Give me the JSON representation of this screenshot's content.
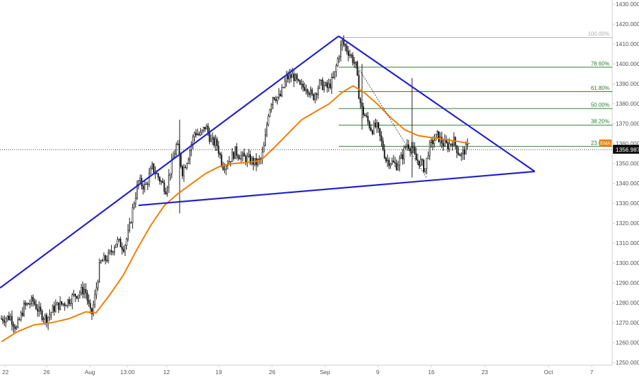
{
  "chart_data": {
    "type": "candlestick",
    "title": "",
    "xlabel": "",
    "ylabel": "",
    "ylim": [
      1250,
      1430
    ],
    "xlim": [
      0,
      932
    ],
    "x_tick_labels": [
      {
        "label": "22",
        "x": 8
      },
      {
        "label": "26",
        "x": 68
      },
      {
        "label": "Aug",
        "x": 131
      },
      {
        "label": "13:00",
        "x": 186
      },
      {
        "label": "12",
        "x": 243
      },
      {
        "label": "19",
        "x": 319
      },
      {
        "label": "26",
        "x": 397
      },
      {
        "label": "Sep",
        "x": 474
      },
      {
        "label": "9",
        "x": 551
      },
      {
        "label": "16",
        "x": 629
      },
      {
        "label": "23",
        "x": 707
      },
      {
        "label": "Oct",
        "x": 800
      },
      {
        "label": "7",
        "x": 863
      }
    ],
    "y_ticks": [
      1250,
      1260,
      1270,
      1280,
      1290,
      1300,
      1310,
      1320,
      1330,
      1340,
      1350,
      1360,
      1370,
      1380,
      1390,
      1400,
      1410,
      1420,
      1430
    ],
    "y_tick_labels": [
      "1250.000",
      "1260.000",
      "1270.000",
      "1280.000",
      "1290.000",
      "1300.000",
      "1310.000",
      "1320.000",
      "1330.000",
      "1340.000",
      "1350.000",
      "1360.000",
      "1370.000",
      "1380.000",
      "1390.000",
      "1400.000",
      "1410.000",
      "1420.000",
      "1430.000"
    ],
    "last_price": {
      "value": 1356.987,
      "label": "1356.987"
    },
    "candle_anchors": [
      [
        2,
        1272
      ],
      [
        15,
        1273
      ],
      [
        24,
        1267
      ],
      [
        35,
        1278
      ],
      [
        48,
        1281
      ],
      [
        58,
        1275
      ],
      [
        68,
        1272
      ],
      [
        80,
        1278
      ],
      [
        95,
        1280
      ],
      [
        110,
        1284
      ],
      [
        124,
        1287
      ],
      [
        133,
        1273
      ],
      [
        138,
        1282
      ],
      [
        146,
        1300
      ],
      [
        158,
        1303
      ],
      [
        170,
        1311
      ],
      [
        181,
        1308
      ],
      [
        188,
        1316
      ],
      [
        195,
        1330
      ],
      [
        202,
        1341
      ],
      [
        212,
        1338
      ],
      [
        222,
        1348
      ],
      [
        233,
        1342
      ],
      [
        242,
        1337
      ],
      [
        250,
        1349
      ],
      [
        258,
        1360
      ],
      [
        266,
        1346
      ],
      [
        274,
        1353
      ],
      [
        284,
        1366
      ],
      [
        292,
        1364
      ],
      [
        300,
        1369
      ],
      [
        308,
        1361
      ],
      [
        316,
        1360
      ],
      [
        325,
        1349
      ],
      [
        333,
        1351
      ],
      [
        343,
        1356
      ],
      [
        354,
        1353
      ],
      [
        364,
        1352
      ],
      [
        373,
        1350
      ],
      [
        381,
        1352
      ],
      [
        386,
        1360
      ],
      [
        391,
        1375
      ],
      [
        398,
        1384
      ],
      [
        408,
        1383
      ],
      [
        418,
        1393
      ],
      [
        428,
        1394
      ],
      [
        438,
        1388
      ],
      [
        447,
        1389
      ],
      [
        456,
        1383
      ],
      [
        466,
        1390
      ],
      [
        478,
        1388
      ],
      [
        487,
        1393
      ],
      [
        493,
        1403
      ],
      [
        499,
        1411
      ],
      [
        505,
        1408
      ],
      [
        512,
        1404
      ],
      [
        519,
        1399
      ],
      [
        524,
        1383
      ],
      [
        528,
        1377
      ],
      [
        535,
        1372
      ],
      [
        542,
        1367
      ],
      [
        549,
        1369
      ],
      [
        556,
        1361
      ],
      [
        563,
        1352
      ],
      [
        570,
        1351
      ],
      [
        578,
        1349
      ],
      [
        586,
        1353
      ],
      [
        593,
        1360
      ],
      [
        601,
        1358
      ],
      [
        606,
        1352
      ],
      [
        613,
        1351
      ],
      [
        620,
        1347
      ],
      [
        625,
        1357
      ],
      [
        631,
        1361
      ],
      [
        638,
        1364
      ],
      [
        646,
        1360
      ],
      [
        654,
        1359
      ],
      [
        661,
        1362
      ],
      [
        668,
        1356
      ],
      [
        673,
        1354
      ],
      [
        678,
        1357
      ],
      [
        683,
        1358
      ]
    ],
    "series": [
      {
        "name": "EMA",
        "type": "line",
        "color": "#f57c00",
        "points": [
          [
            2,
            1260.5
          ],
          [
            25,
            1265.5
          ],
          [
            50,
            1269
          ],
          [
            75,
            1270
          ],
          [
            100,
            1272
          ],
          [
            125,
            1275.5
          ],
          [
            140,
            1275
          ],
          [
            160,
            1284
          ],
          [
            180,
            1294
          ],
          [
            200,
            1307
          ],
          [
            220,
            1319
          ],
          [
            240,
            1329
          ],
          [
            260,
            1335
          ],
          [
            280,
            1340
          ],
          [
            300,
            1345
          ],
          [
            320,
            1348.5
          ],
          [
            340,
            1350
          ],
          [
            360,
            1350.5
          ],
          [
            380,
            1351.5
          ],
          [
            400,
            1358
          ],
          [
            420,
            1365
          ],
          [
            440,
            1372
          ],
          [
            460,
            1376
          ],
          [
            480,
            1380
          ],
          [
            500,
            1386
          ],
          [
            515,
            1389
          ],
          [
            530,
            1386
          ],
          [
            550,
            1380
          ],
          [
            570,
            1373
          ],
          [
            590,
            1367
          ],
          [
            610,
            1364
          ],
          [
            630,
            1363
          ],
          [
            650,
            1362
          ],
          [
            670,
            1361
          ],
          [
            685,
            1360
          ]
        ]
      }
    ],
    "trendlines": [
      {
        "name": "upper-ascending",
        "color": "#2020d0",
        "from": [
          0,
          1287.5
        ],
        "to": [
          494,
          1414
        ]
      },
      {
        "name": "upper-descending",
        "color": "#2020d0",
        "from": [
          494,
          1414
        ],
        "to": [
          780,
          1346
        ]
      },
      {
        "name": "lower-support",
        "color": "#2020d0",
        "from": [
          202,
          1329
        ],
        "to": [
          780,
          1346
        ]
      }
    ],
    "dotted_line": {
      "from": [
        510,
        1405
      ],
      "to": [
        622,
        1343
      ]
    },
    "fibonacci": {
      "x_start": 494,
      "x_end": 893,
      "levels": [
        {
          "label": "100.00%",
          "price": 1413.3,
          "color": "#b0b0b0"
        },
        {
          "label": "78.60%",
          "price": 1398.4,
          "color": "#2e7d32"
        },
        {
          "label": "61.80%",
          "price": 1386.1,
          "color": "#2e7d32"
        },
        {
          "label": "50.00%",
          "price": 1377.6,
          "color": "#2e7d32"
        },
        {
          "label": "38.20%",
          "price": 1369.3,
          "color": "#2e7d32"
        },
        {
          "label": "23.60%",
          "price": 1358.6,
          "color": "#2e7d32"
        }
      ]
    },
    "ema_label": "EMA",
    "colors": {
      "candle": "#1a1a1a",
      "ema": "#f57c00",
      "trend": "#2020d0",
      "fib": "#2e7d32",
      "axis_text": "#555555",
      "price_tag_bg": "#111111",
      "price_tag_text": "#ffffff"
    }
  }
}
